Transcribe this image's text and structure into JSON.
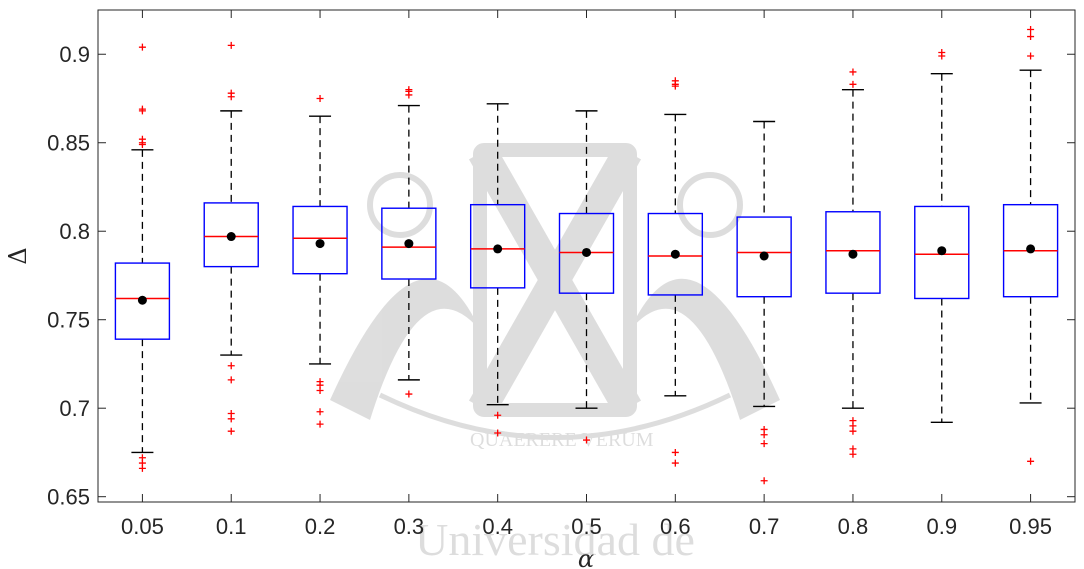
{
  "chart_data": {
    "type": "box",
    "xlabel": "α",
    "ylabel": "Δ",
    "ylim": [
      0.647,
      0.925
    ],
    "yticks": [
      0.65,
      0.7,
      0.75,
      0.8,
      0.85,
      0.9
    ],
    "ytick_labels": [
      "0.65",
      "0.7",
      "0.75",
      "0.8",
      "0.85",
      "0.9"
    ],
    "grid": false,
    "categories": [
      "0.05",
      "0.1",
      "0.2",
      "0.3",
      "0.4",
      "0.5",
      "0.6",
      "0.7",
      "0.8",
      "0.9",
      "0.95"
    ],
    "boxes": [
      {
        "q1": 0.739,
        "median": 0.762,
        "q3": 0.782,
        "whisker_low": 0.675,
        "whisker_high": 0.846,
        "mean": 0.761,
        "outliers": [
          0.904,
          0.869,
          0.868,
          0.852,
          0.85,
          0.849,
          0.672,
          0.669,
          0.666
        ]
      },
      {
        "q1": 0.78,
        "median": 0.797,
        "q3": 0.816,
        "whisker_low": 0.73,
        "whisker_high": 0.868,
        "mean": 0.797,
        "outliers": [
          0.905,
          0.878,
          0.876,
          0.724,
          0.716,
          0.697,
          0.694,
          0.687
        ]
      },
      {
        "q1": 0.776,
        "median": 0.796,
        "q3": 0.814,
        "whisker_low": 0.725,
        "whisker_high": 0.865,
        "mean": 0.793,
        "outliers": [
          0.875,
          0.715,
          0.713,
          0.71,
          0.698,
          0.691
        ]
      },
      {
        "q1": 0.773,
        "median": 0.791,
        "q3": 0.813,
        "whisker_low": 0.716,
        "whisker_high": 0.871,
        "mean": 0.793,
        "outliers": [
          0.88,
          0.879,
          0.877,
          0.708
        ]
      },
      {
        "q1": 0.768,
        "median": 0.79,
        "q3": 0.815,
        "whisker_low": 0.702,
        "whisker_high": 0.872,
        "mean": 0.79,
        "outliers": [
          0.696,
          0.686
        ]
      },
      {
        "q1": 0.765,
        "median": 0.788,
        "q3": 0.81,
        "whisker_low": 0.7,
        "whisker_high": 0.868,
        "mean": 0.788,
        "outliers": [
          0.682
        ]
      },
      {
        "q1": 0.764,
        "median": 0.786,
        "q3": 0.81,
        "whisker_low": 0.707,
        "whisker_high": 0.866,
        "mean": 0.787,
        "outliers": [
          0.885,
          0.883,
          0.882,
          0.675,
          0.669
        ]
      },
      {
        "q1": 0.763,
        "median": 0.788,
        "q3": 0.808,
        "whisker_low": 0.701,
        "whisker_high": 0.862,
        "mean": 0.786,
        "outliers": [
          0.688,
          0.685,
          0.68,
          0.659
        ]
      },
      {
        "q1": 0.765,
        "median": 0.789,
        "q3": 0.811,
        "whisker_low": 0.7,
        "whisker_high": 0.88,
        "mean": 0.787,
        "outliers": [
          0.89,
          0.883,
          0.693,
          0.69,
          0.687,
          0.677,
          0.674
        ]
      },
      {
        "q1": 0.762,
        "median": 0.787,
        "q3": 0.814,
        "whisker_low": 0.692,
        "whisker_high": 0.889,
        "mean": 0.789,
        "outliers": [
          0.901,
          0.899
        ]
      },
      {
        "q1": 0.763,
        "median": 0.789,
        "q3": 0.815,
        "whisker_low": 0.703,
        "whisker_high": 0.891,
        "mean": 0.79,
        "outliers": [
          0.914,
          0.91,
          0.899,
          0.67
        ]
      }
    ],
    "colors": {
      "box": "#0000ff",
      "median": "#ff0000",
      "outlier": "#ff0000",
      "whisker": "#000000",
      "mean": "#000000"
    }
  },
  "watermark": {
    "motto": "QUAERERE VERUM",
    "text": "Universidad de"
  }
}
